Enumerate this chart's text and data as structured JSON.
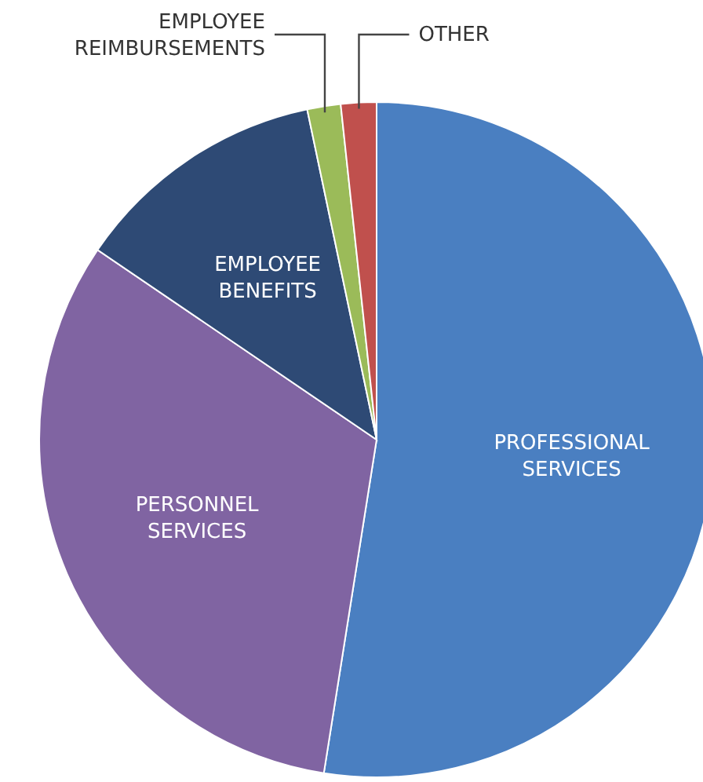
{
  "chart_data": {
    "type": "pie",
    "categories": [
      "PROFESSIONAL SERVICES",
      "PERSONNEL SERVICES",
      "EMPLOYEE BENEFITS",
      "EMPLOYEE REIMBURSEMENTS",
      "OTHER"
    ],
    "values": [
      52.5,
      32,
      12.2,
      1.6,
      1.7
    ],
    "colors": [
      "#4a7fc1",
      "#8064a2",
      "#2e4a75",
      "#9bbb59",
      "#c0504d"
    ]
  }
}
